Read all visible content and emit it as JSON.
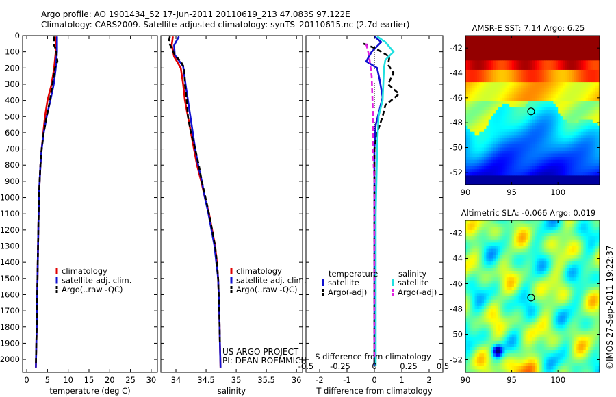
{
  "header": {
    "line1": "Argo profile: AO 1901434_52 17-Jun-2011 20110619_213 47.083S 97.122E",
    "line2": "Climatology: CARS2009. Satellite-adjusted climatology: synTS_20110615.nc (2.7d earlier)"
  },
  "footer": {
    "project": "US ARGO PROJECT",
    "pi": "PI: DEAN ROEMMICH",
    "stamp": "©IMOS 27-Sep-2011 19:22:37"
  },
  "colors": {
    "climatology": "#e00000",
    "satellite": "#1010d0",
    "argo": "#000000",
    "salinity_satellite": "#20e0e0",
    "salinity_argo": "#e020e0"
  },
  "chart_data": [
    {
      "type": "line",
      "panel": "temperature",
      "xlabel": "temperature (deg C)",
      "ylabel": "",
      "xlim": [
        -1,
        31.5
      ],
      "ylim": [
        2080,
        0
      ],
      "x_ticks": [
        "0",
        "5",
        "10",
        "15",
        "20",
        "25",
        "30"
      ],
      "y_ticks": [
        "0",
        "100",
        "200",
        "300",
        "400",
        "500",
        "600",
        "700",
        "800",
        "900",
        "1000",
        "1100",
        "1200",
        "1300",
        "1400",
        "1500",
        "1600",
        "1700",
        "1800",
        "1900",
        "2000"
      ],
      "legend": [
        "climatology",
        "satellite-adj. clim.",
        "Argo(..raw -QC)"
      ],
      "series": [
        {
          "name": "climatology",
          "color": "#e00000",
          "style": "solid",
          "points": [
            [
              7.0,
              5
            ],
            [
              7.0,
              100
            ],
            [
              6.6,
              200
            ],
            [
              6.0,
              300
            ],
            [
              5.0,
              400
            ],
            [
              4.4,
              500
            ],
            [
              4.0,
              600
            ],
            [
              3.6,
              700
            ],
            [
              3.3,
              800
            ],
            [
              3.1,
              900
            ],
            [
              2.95,
              1000
            ],
            [
              2.8,
              1200
            ],
            [
              2.6,
              1500
            ],
            [
              2.4,
              1800
            ],
            [
              2.2,
              2050
            ]
          ]
        },
        {
          "name": "satellite-adj. clim.",
          "color": "#1010d0",
          "style": "solid",
          "points": [
            [
              7.3,
              5
            ],
            [
              7.3,
              100
            ],
            [
              7.0,
              200
            ],
            [
              6.5,
              300
            ],
            [
              5.7,
              400
            ],
            [
              4.8,
              500
            ],
            [
              4.1,
              600
            ],
            [
              3.6,
              700
            ],
            [
              3.3,
              800
            ],
            [
              3.1,
              900
            ],
            [
              2.95,
              1000
            ],
            [
              2.8,
              1200
            ],
            [
              2.6,
              1500
            ],
            [
              2.4,
              1800
            ],
            [
              2.2,
              2050
            ]
          ]
        },
        {
          "name": "Argo(..raw -QC)",
          "color": "#000000",
          "style": "dashed",
          "points": [
            [
              6.6,
              5
            ],
            [
              6.6,
              60
            ],
            [
              7.1,
              90
            ],
            [
              7.4,
              160
            ],
            [
              6.8,
              200
            ],
            [
              6.2,
              300
            ],
            [
              5.6,
              400
            ],
            [
              4.8,
              500
            ],
            [
              4.1,
              600
            ],
            [
              3.6,
              700
            ],
            [
              3.3,
              800
            ],
            [
              3.1,
              900
            ],
            [
              2.95,
              1000
            ],
            [
              2.8,
              1200
            ],
            [
              2.6,
              1500
            ],
            [
              2.4,
              1800
            ],
            [
              2.2,
              2040
            ]
          ]
        }
      ]
    },
    {
      "type": "line",
      "panel": "salinity",
      "xlabel": "salinity",
      "ylabel": "",
      "xlim": [
        33.75,
        36.1
      ],
      "ylim": [
        2080,
        0
      ],
      "x_ticks": [
        "34",
        "34.5",
        "35",
        "35.5",
        "36"
      ],
      "legend": [
        "climatology",
        "satellite-adj. clim.",
        "Argo(..raw -QC)"
      ],
      "series": [
        {
          "name": "climatology",
          "color": "#e00000",
          "style": "solid",
          "points": [
            [
              33.95,
              5
            ],
            [
              33.93,
              60
            ],
            [
              33.97,
              130
            ],
            [
              34.08,
              200
            ],
            [
              34.12,
              300
            ],
            [
              34.15,
              400
            ],
            [
              34.2,
              500
            ],
            [
              34.25,
              600
            ],
            [
              34.3,
              700
            ],
            [
              34.35,
              800
            ],
            [
              34.42,
              900
            ],
            [
              34.48,
              1000
            ],
            [
              34.55,
              1100
            ],
            [
              34.6,
              1200
            ],
            [
              34.65,
              1300
            ],
            [
              34.68,
              1400
            ],
            [
              34.7,
              1500
            ],
            [
              34.72,
              1700
            ],
            [
              34.73,
              1900
            ],
            [
              34.74,
              2050
            ]
          ]
        },
        {
          "name": "satellite-adj. clim.",
          "color": "#1010d0",
          "style": "solid",
          "points": [
            [
              34.05,
              5
            ],
            [
              33.97,
              60
            ],
            [
              33.98,
              120
            ],
            [
              34.12,
              190
            ],
            [
              34.16,
              300
            ],
            [
              34.2,
              400
            ],
            [
              34.24,
              500
            ],
            [
              34.28,
              600
            ],
            [
              34.32,
              700
            ],
            [
              34.37,
              800
            ],
            [
              34.43,
              900
            ],
            [
              34.48,
              1000
            ],
            [
              34.54,
              1100
            ],
            [
              34.59,
              1200
            ],
            [
              34.64,
              1300
            ],
            [
              34.67,
              1400
            ],
            [
              34.7,
              1500
            ],
            [
              34.72,
              1700
            ],
            [
              34.73,
              1900
            ],
            [
              34.74,
              2050
            ]
          ]
        },
        {
          "name": "Argo(..raw -QC)",
          "color": "#000000",
          "style": "dashed",
          "points": [
            [
              33.9,
              5
            ],
            [
              33.88,
              40
            ],
            [
              33.92,
              70
            ],
            [
              33.98,
              120
            ],
            [
              34.08,
              160
            ],
            [
              34.14,
              200
            ],
            [
              34.15,
              300
            ],
            [
              34.18,
              400
            ],
            [
              34.2,
              500
            ],
            [
              34.25,
              600
            ],
            [
              34.32,
              700
            ],
            [
              34.38,
              800
            ],
            [
              34.43,
              900
            ],
            [
              34.49,
              1000
            ],
            [
              34.55,
              1100
            ],
            [
              34.6,
              1200
            ],
            [
              34.65,
              1300
            ],
            [
              34.68,
              1400
            ],
            [
              34.7,
              1500
            ],
            [
              34.72,
              1700
            ],
            [
              34.73,
              1900
            ]
          ]
        }
      ]
    },
    {
      "type": "line",
      "panel": "differences",
      "xlabel": "T difference from climatology",
      "top_label": "S difference from climatology",
      "xlim": [
        -2.5,
        2.5
      ],
      "ylim": [
        2080,
        0
      ],
      "x_ticks": [
        "-2",
        "-1",
        "0",
        "1",
        "2"
      ],
      "top_ticks": [
        "-0.5",
        "-0.25",
        "0",
        "0.25",
        "0.5"
      ],
      "legend_headers": [
        "temperature",
        "salinity"
      ],
      "legend": [
        "satellite",
        "Argo(-adj)",
        "satellite",
        "Argo(-adj)"
      ],
      "series": [
        {
          "name": "temperature satellite",
          "color": "#1010d0",
          "style": "solid",
          "points": [
            [
              0.0,
              5
            ],
            [
              0.25,
              40
            ],
            [
              -0.1,
              100
            ],
            [
              -0.3,
              160
            ],
            [
              0.1,
              200
            ],
            [
              0.2,
              280
            ],
            [
              0.3,
              380
            ],
            [
              0.2,
              450
            ],
            [
              0.05,
              550
            ],
            [
              0.0,
              700
            ],
            [
              0.0,
              2040
            ]
          ]
        },
        {
          "name": "temperature Argo(-adj)",
          "color": "#000000",
          "style": "dashed",
          "points": [
            [
              -0.4,
              50
            ],
            [
              0.05,
              80
            ],
            [
              0.55,
              130
            ],
            [
              0.5,
              180
            ],
            [
              0.7,
              230
            ],
            [
              0.5,
              300
            ],
            [
              0.9,
              360
            ],
            [
              0.4,
              430
            ],
            [
              0.3,
              500
            ],
            [
              0.1,
              600
            ],
            [
              0.0,
              700
            ],
            [
              0.0,
              2040
            ]
          ]
        },
        {
          "name": "salinity satellite",
          "color": "#20e0e0",
          "style": "solid",
          "points": [
            [
              0.1,
              5
            ],
            [
              0.4,
              40
            ],
            [
              0.7,
              100
            ],
            [
              0.4,
              150
            ],
            [
              0.35,
              200
            ],
            [
              0.3,
              400
            ],
            [
              0.15,
              500
            ],
            [
              0.1,
              700
            ],
            [
              0.05,
              1100
            ],
            [
              0.05,
              2040
            ]
          ]
        },
        {
          "name": "salinity Argo(-adj)",
          "color": "#e020e0",
          "style": "dashed",
          "points": [
            [
              -0.3,
              50
            ],
            [
              -0.2,
              120
            ],
            [
              -0.1,
              250
            ],
            [
              -0.05,
              500
            ],
            [
              -0.05,
              720
            ],
            [
              0.0,
              900
            ],
            [
              0.0,
              2000
            ]
          ]
        }
      ]
    },
    {
      "type": "heatmap",
      "panel": "sst",
      "title": "AMSR-E SST: 7.14  Argo: 6.25",
      "xlim": [
        90,
        104.5
      ],
      "ylim": [
        -53,
        -41
      ],
      "x_ticks": [
        "90",
        "95",
        "100"
      ],
      "y_ticks": [
        "-42",
        "-44",
        "-46",
        "-48",
        "-50",
        "-52"
      ],
      "marker": {
        "lon": 97.1,
        "lat": -47.1
      }
    },
    {
      "type": "heatmap",
      "panel": "sla",
      "title": "Altimetric SLA: -0.066  Argo: 0.019",
      "xlim": [
        90,
        104.5
      ],
      "ylim": [
        -53,
        -41
      ],
      "x_ticks": [
        "90",
        "95",
        "100"
      ],
      "y_ticks": [
        "-42",
        "-44",
        "-46",
        "-48",
        "-50",
        "-52"
      ],
      "marker": {
        "lon": 97.1,
        "lat": -47.1
      }
    }
  ]
}
